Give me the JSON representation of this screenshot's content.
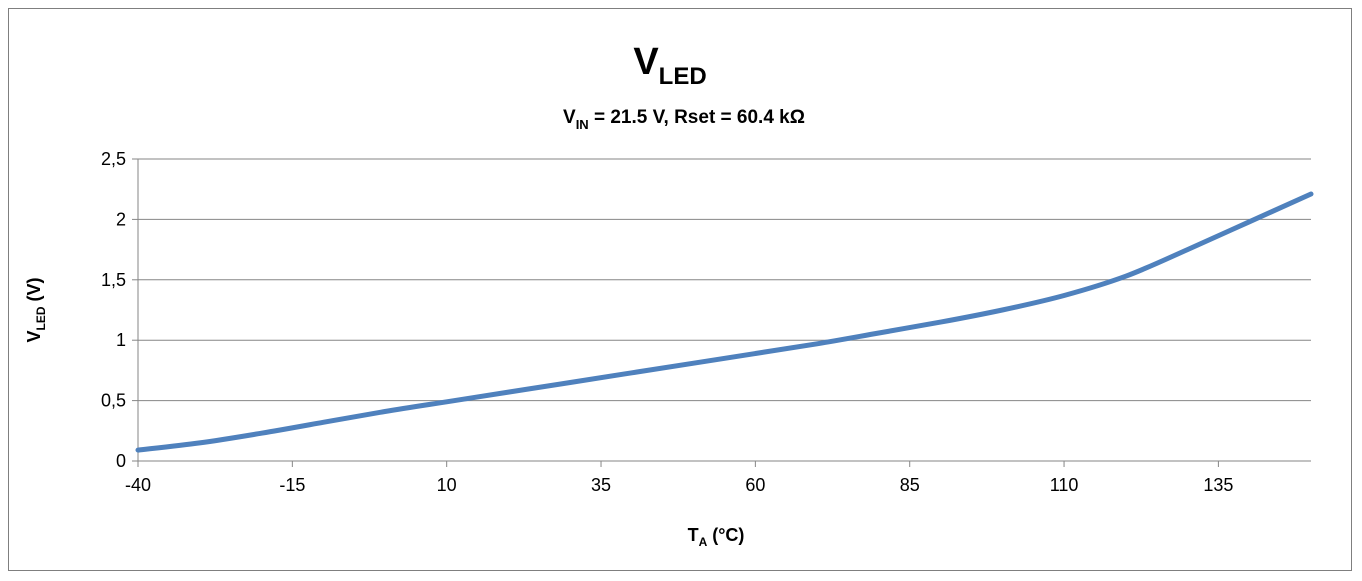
{
  "chart_data": {
    "type": "line",
    "title": {
      "main": "V",
      "main_sub": "LED"
    },
    "subtitle": {
      "v": "V",
      "v_sub": "IN",
      "rest": " = 21.5 V, Rset = 60.4 kΩ"
    },
    "xlabel": {
      "t": "T",
      "t_sub": "A",
      "rest": " (°C)"
    },
    "ylabel": {
      "v": "V",
      "v_sub": "LED",
      "rest": " (V)"
    },
    "xlim": [
      -40,
      150
    ],
    "ylim": [
      0,
      2.5
    ],
    "x_ticks": [
      -40,
      -15,
      10,
      35,
      60,
      85,
      110,
      135
    ],
    "x_tick_labels": [
      "-40",
      "-15",
      "10",
      "35",
      "60",
      "85",
      "110",
      "135"
    ],
    "y_ticks": [
      0,
      0.5,
      1,
      1.5,
      2,
      2.5
    ],
    "y_tick_labels": [
      "0",
      "0,5",
      "1",
      "1,5",
      "2",
      "2,5"
    ],
    "grid": "horizontal",
    "series": [
      {
        "color": "#4f81bd",
        "x": [
          -40,
          -30,
          -20,
          -10,
          0,
          10,
          20,
          30,
          40,
          50,
          60,
          70,
          80,
          90,
          100,
          110,
          120,
          130,
          140,
          150
        ],
        "y": [
          0.09,
          0.15,
          0.23,
          0.32,
          0.41,
          0.49,
          0.57,
          0.65,
          0.73,
          0.81,
          0.89,
          0.97,
          1.06,
          1.15,
          1.25,
          1.37,
          1.53,
          1.75,
          1.98,
          2.21
        ]
      }
    ]
  }
}
